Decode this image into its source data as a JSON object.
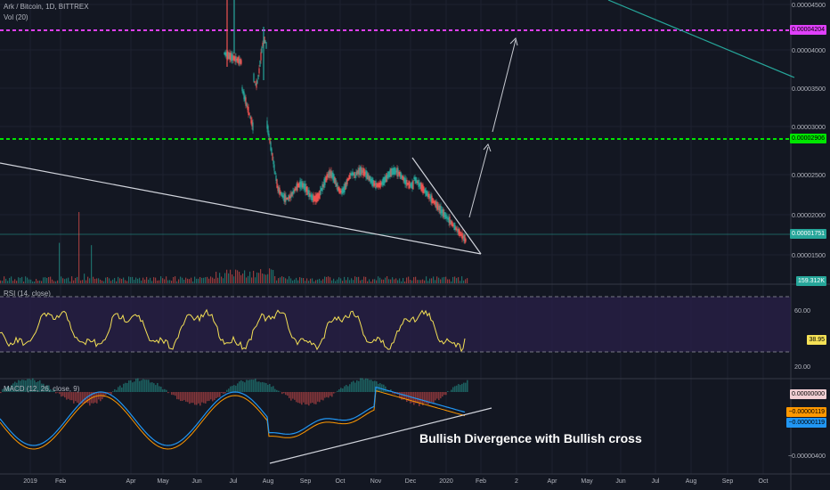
{
  "header": {
    "title": "Ark / Bitcoin, 1D, BITTREX",
    "vol_label": "Vol (20)"
  },
  "rsi": {
    "label": "RSI (14, close)",
    "value": "38.95",
    "levels": [
      "60.00",
      "20.00"
    ]
  },
  "macd": {
    "label": "MACD (12, 26, close, 9)",
    "values": [
      "0.00000000",
      "−0.00000119",
      "−0.00000119"
    ],
    "level": "−0.00000400"
  },
  "price_axis": {
    "ticks": [
      "0.00004500",
      "0.00004000",
      "0.00003500",
      "0.00003000",
      "0.00002500",
      "0.00002000",
      "0.00001500"
    ],
    "badges": {
      "magenta": "0.00004204",
      "green": "0.00002906",
      "current": "0.00001751",
      "volume": "159.312K"
    }
  },
  "time_axis": [
    "2019",
    "Feb",
    "Apr",
    "May",
    "Jun",
    "Jul",
    "Aug",
    "Sep",
    "Oct",
    "Nov",
    "Dec",
    "2020",
    "Feb",
    "2",
    "Apr",
    "May",
    "Jun",
    "Jul",
    "Aug",
    "Sep",
    "Oct"
  ],
  "annotation": "Bullish Divergence with Bullish cross",
  "colors": {
    "background": "#131722",
    "magenta_line": "#e040fb",
    "green_line": "#00e600",
    "teal_line": "#26a69a",
    "up_candle": "#26a69a",
    "down_candle": "#ef5350",
    "rsi_line": "#f5e156",
    "rsi_band": "#2a2048",
    "macd_line": "#2196f3",
    "signal_line": "#ff9800"
  }
}
